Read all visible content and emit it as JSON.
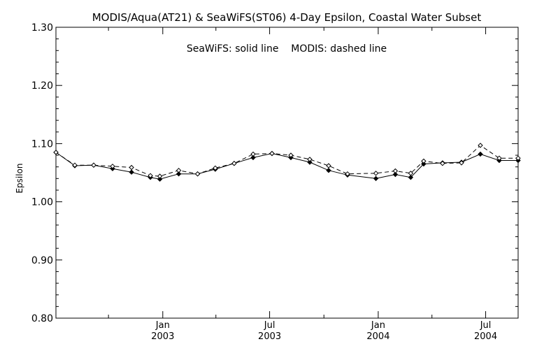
{
  "chart_data": {
    "type": "line",
    "title": "MODIS/Aqua(AT21) & SeaWiFS(ST06) 4-Day Epsilon, Coastal Water Subset",
    "annotation": "SeaWiFS: solid line    MODIS: dashed line",
    "ylabel": "Epsilon",
    "xlabel": "",
    "ylim": [
      0.8,
      1.3
    ],
    "xlim": [
      "2002-07-04",
      "2004-08-25"
    ],
    "yticks": [
      "0.80",
      "0.90",
      "1.00",
      "1.10",
      "1.20",
      "1.30"
    ],
    "xticks": [
      {
        "date": "2003-01-01",
        "month": "Jan",
        "year": "2003"
      },
      {
        "date": "2003-07-01",
        "month": "Jul",
        "year": "2003"
      },
      {
        "date": "2004-01-01",
        "month": "Jan",
        "year": "2004"
      },
      {
        "date": "2004-07-01",
        "month": "Jul",
        "year": "2004"
      }
    ],
    "grid": false,
    "series": [
      {
        "name": "SeaWiFS",
        "style": "solid",
        "marker": "filled-diamond",
        "color": "#000000",
        "x": [
          "2002-07-04",
          "2002-08-05",
          "2002-09-06",
          "2002-10-08",
          "2002-11-09",
          "2002-12-11",
          "2002-12-27",
          "2003-01-28",
          "2003-02-29",
          "2003-03-31",
          "2003-05-02",
          "2003-06-03",
          "2003-07-05",
          "2003-08-06",
          "2003-09-07",
          "2003-10-09",
          "2003-11-10",
          "2003-12-28",
          "2004-01-30",
          "2004-02-25",
          "2004-03-18",
          "2004-04-19",
          "2004-05-21",
          "2004-06-22",
          "2004-07-24",
          "2004-08-25"
        ],
        "y": [
          1.085,
          1.062,
          1.063,
          1.057,
          1.051,
          1.042,
          1.039,
          1.048,
          1.048,
          1.056,
          1.066,
          1.076,
          1.083,
          1.076,
          1.068,
          1.054,
          1.046,
          1.04,
          1.047,
          1.042,
          1.065,
          1.067,
          1.068,
          1.082,
          1.071,
          1.071
        ]
      },
      {
        "name": "MODIS",
        "style": "dashed",
        "marker": "open-diamond",
        "color": "#000000",
        "x": [
          "2002-07-04",
          "2002-08-05",
          "2002-09-06",
          "2002-10-08",
          "2002-11-09",
          "2002-12-11",
          "2002-12-27",
          "2003-01-28",
          "2003-02-29",
          "2003-03-31",
          "2003-05-02",
          "2003-06-03",
          "2003-07-05",
          "2003-08-06",
          "2003-09-07",
          "2003-10-09",
          "2003-11-10",
          "2003-12-28",
          "2004-01-30",
          "2004-02-25",
          "2004-03-18",
          "2004-04-19",
          "2004-05-21",
          "2004-06-22",
          "2004-07-24",
          "2004-08-25"
        ],
        "y": [
          1.085,
          1.063,
          1.063,
          1.061,
          1.059,
          1.045,
          1.044,
          1.054,
          1.048,
          1.058,
          1.066,
          1.082,
          1.083,
          1.08,
          1.073,
          1.062,
          1.048,
          1.049,
          1.053,
          1.049,
          1.07,
          1.066,
          1.067,
          1.097,
          1.075,
          1.075
        ]
      }
    ]
  }
}
